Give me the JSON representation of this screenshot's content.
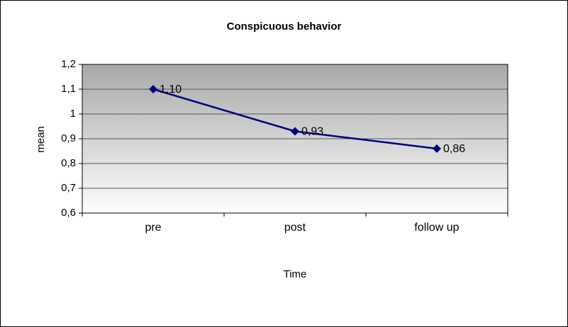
{
  "chart_data": {
    "type": "line",
    "title": "Conspicuous behavior",
    "xlabel": "Time",
    "ylabel": "mean",
    "categories": [
      "pre",
      "post",
      "follow up"
    ],
    "values": [
      1.1,
      0.93,
      0.86
    ],
    "point_labels": [
      "1,10",
      "0,93",
      "0,86"
    ],
    "y_tick_labels": [
      "1,2",
      "1,1",
      "1",
      "0,9",
      "0,8",
      "0,7",
      "0,6"
    ],
    "ylim": [
      0.6,
      1.2
    ],
    "grid": true,
    "legend": "none",
    "colors": {
      "series": "#000080",
      "plot_bg_top": "#a8a8a8",
      "plot_bg_bottom": "#fefefe",
      "gridline": "#595959",
      "axis": "#000000",
      "text": "#000000"
    }
  }
}
